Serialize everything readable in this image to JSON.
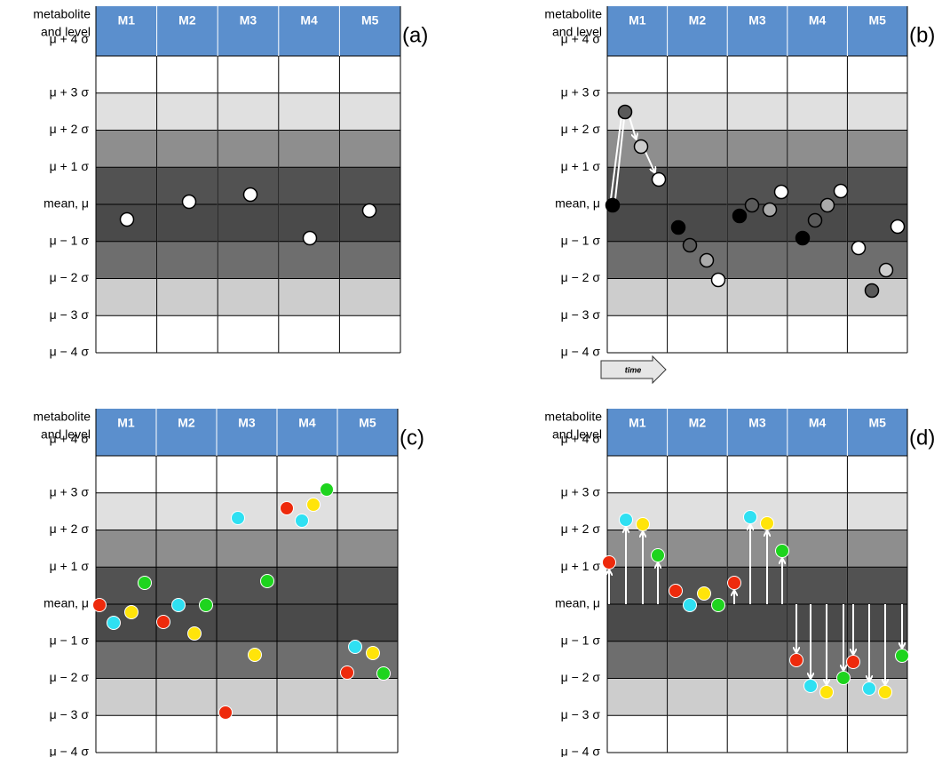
{
  "panels": [
    {
      "label": "(a)",
      "axis_title": [
        "metabolite",
        "and level"
      ],
      "columns": [
        "M1",
        "M2",
        "M3",
        "M4",
        "M5"
      ],
      "levels": [
        "μ + 4 σ",
        "μ + 3 σ",
        "μ + 2 σ",
        "μ + 1 σ",
        "mean, μ",
        "μ − 1 σ",
        "μ − 2 σ",
        "μ − 3 σ",
        "μ − 4 σ"
      ]
    },
    {
      "label": "(b)",
      "axis_title": [
        "metabolite",
        "and level"
      ],
      "columns": [
        "M1",
        "M2",
        "M3",
        "M4",
        "M5"
      ],
      "levels": [
        "μ + 4 σ",
        "μ + 3 σ",
        "μ + 2 σ",
        "μ + 1 σ",
        "mean, μ",
        "μ − 1 σ",
        "μ − 2 σ",
        "μ − 3 σ",
        "μ − 4 σ"
      ]
    },
    {
      "label": "(c)",
      "axis_title": [
        "metabolite",
        "and level"
      ],
      "columns": [
        "M1",
        "M2",
        "M3",
        "M4",
        "M5"
      ],
      "levels": [
        "μ + 4 σ",
        "μ + 3 σ",
        "μ + 2 σ",
        "μ + 1 σ",
        "mean, μ",
        "μ − 1 σ",
        "μ − 2 σ",
        "μ − 3 σ",
        "μ − 4 σ"
      ]
    },
    {
      "label": "(d)",
      "axis_title": [
        "metabolite",
        "and level"
      ],
      "columns": [
        "M1",
        "M2",
        "M3",
        "M4",
        "M5"
      ],
      "levels": [
        "μ + 4 σ",
        "μ + 3 σ",
        "μ + 2 σ",
        "μ + 1 σ",
        "mean, μ",
        "μ − 1 σ",
        "μ − 2 σ",
        "μ − 3 σ",
        "μ − 4 σ"
      ]
    }
  ],
  "time_label": "time"
}
